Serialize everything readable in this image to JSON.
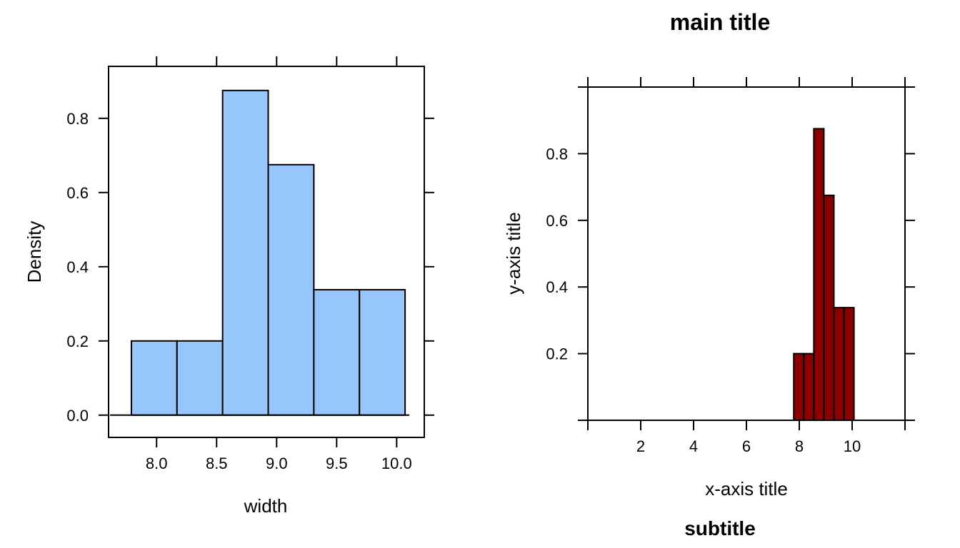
{
  "chart_data": [
    {
      "type": "bar",
      "subtype": "histogram",
      "title": "",
      "xlabel": "width",
      "ylabel": "Density",
      "bins": [
        {
          "from": 7.79,
          "to": 8.17,
          "density": 0.2
        },
        {
          "from": 8.17,
          "to": 8.55,
          "density": 0.2
        },
        {
          "from": 8.55,
          "to": 8.93,
          "density": 0.875
        },
        {
          "from": 8.93,
          "to": 9.31,
          "density": 0.675
        },
        {
          "from": 9.31,
          "to": 9.69,
          "density": 0.338
        },
        {
          "from": 9.69,
          "to": 10.07,
          "density": 0.338
        }
      ],
      "xlim": [
        7.6,
        10.23
      ],
      "ylim": [
        -0.06,
        0.94
      ],
      "x_ticks": [
        "8.0",
        "8.5",
        "9.0",
        "9.5",
        "10.0"
      ],
      "y_ticks": [
        "0.0",
        "0.2",
        "0.4",
        "0.6",
        "0.8"
      ],
      "colors": {
        "fill": "#96C6FC",
        "stroke": "#000000"
      }
    },
    {
      "type": "bar",
      "subtype": "histogram",
      "title": "main title",
      "subtitle": "subtitle",
      "xlabel": "x-axis title",
      "ylabel": "y-axis title",
      "bins": [
        {
          "from": 7.79,
          "to": 8.17,
          "density": 0.2
        },
        {
          "from": 8.17,
          "to": 8.55,
          "density": 0.2
        },
        {
          "from": 8.55,
          "to": 8.93,
          "density": 0.875
        },
        {
          "from": 8.93,
          "to": 9.31,
          "density": 0.675
        },
        {
          "from": 9.31,
          "to": 9.69,
          "density": 0.338
        },
        {
          "from": 9.69,
          "to": 10.07,
          "density": 0.338
        }
      ],
      "xlim": [
        0,
        12
      ],
      "ylim": [
        0,
        1
      ],
      "x_ticks": [
        "2",
        "4",
        "6",
        "8",
        "10"
      ],
      "y_ticks": [
        "0.2",
        "0.4",
        "0.6",
        "0.8"
      ],
      "colors": {
        "fill": "#8B0000",
        "stroke": "#000000"
      }
    }
  ]
}
